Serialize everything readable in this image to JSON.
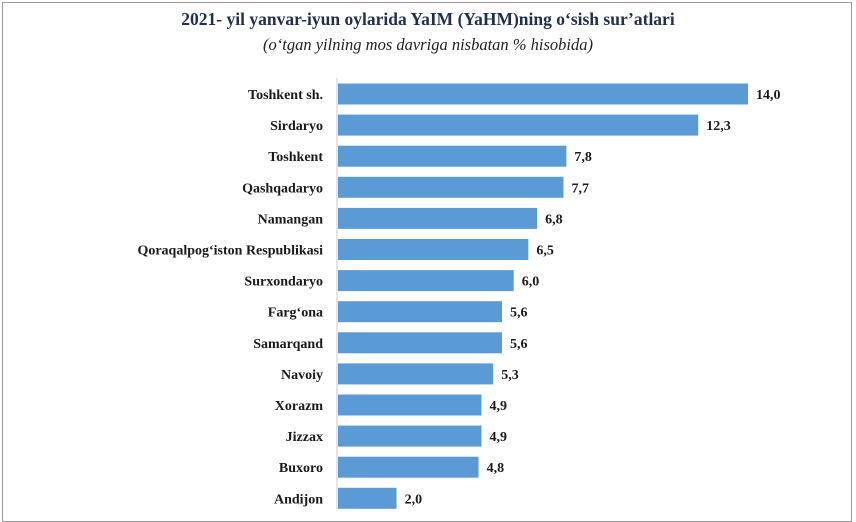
{
  "chart_data": {
    "type": "bar",
    "orientation": "horizontal",
    "title": "2021- yil yanvar-iyun oylarida YaIM (YaHM)ning o‘sish sur’atlari",
    "subtitle": "(o‘tgan yilning mos davriga nisbatan % hisobida)",
    "categories": [
      "Toshkent sh.",
      "Sirdaryo",
      "Toshkent",
      "Qashqadaryo",
      "Namangan",
      "Qoraqalpog‘iston Respublikasi",
      "Surxondaryo",
      "Farg‘ona",
      "Samarqand",
      "Navoiy",
      "Xorazm",
      "Jizzax",
      "Buxoro",
      "Andijon"
    ],
    "values": [
      14.0,
      12.3,
      7.8,
      7.7,
      6.8,
      6.5,
      6.0,
      5.6,
      5.6,
      5.3,
      4.9,
      4.9,
      4.8,
      2.0
    ],
    "value_labels": [
      "14,0",
      "12,3",
      "7,8",
      "7,7",
      "6,8",
      "6,5",
      "6,0",
      "5,6",
      "5,6",
      "5,3",
      "4,9",
      "4,9",
      "4,8",
      "2,0"
    ],
    "xlim": [
      0,
      14.0
    ],
    "grid": false,
    "legend": "none",
    "bar_color": "#5b9bd5"
  }
}
